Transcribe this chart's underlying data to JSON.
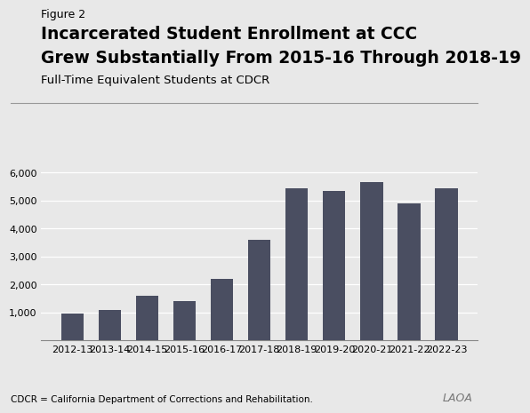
{
  "categories": [
    "2012-13",
    "2013-14",
    "2014-15",
    "2015-16",
    "2016-17",
    "2017-18",
    "2018-19",
    "2019-20",
    "2020-21",
    "2021-22",
    "2022-23"
  ],
  "values": [
    950,
    1100,
    1600,
    1400,
    2200,
    3600,
    5450,
    5350,
    5650,
    4900,
    5450
  ],
  "bar_color": "#4a4e61",
  "background_color": "#e8e8e8",
  "figure_label": "Figure 2",
  "title_line1": "Incarcerated Student Enrollment at CCC",
  "title_line2": "Grew Substantially From 2015-16 Through 2018-19",
  "subtitle": "Full-Time Equivalent Students at CDCR",
  "footnote": "CDCR = California Department of Corrections and Rehabilitation.",
  "logo_text": "LAOA",
  "ylim": [
    0,
    6200
  ],
  "yticks": [
    1000,
    2000,
    3000,
    4000,
    5000,
    6000
  ],
  "title_fontsize": 13.5,
  "subtitle_fontsize": 9.5,
  "figure_label_fontsize": 9,
  "tick_fontsize": 8,
  "footnote_fontsize": 7.5,
  "bar_width": 0.6
}
